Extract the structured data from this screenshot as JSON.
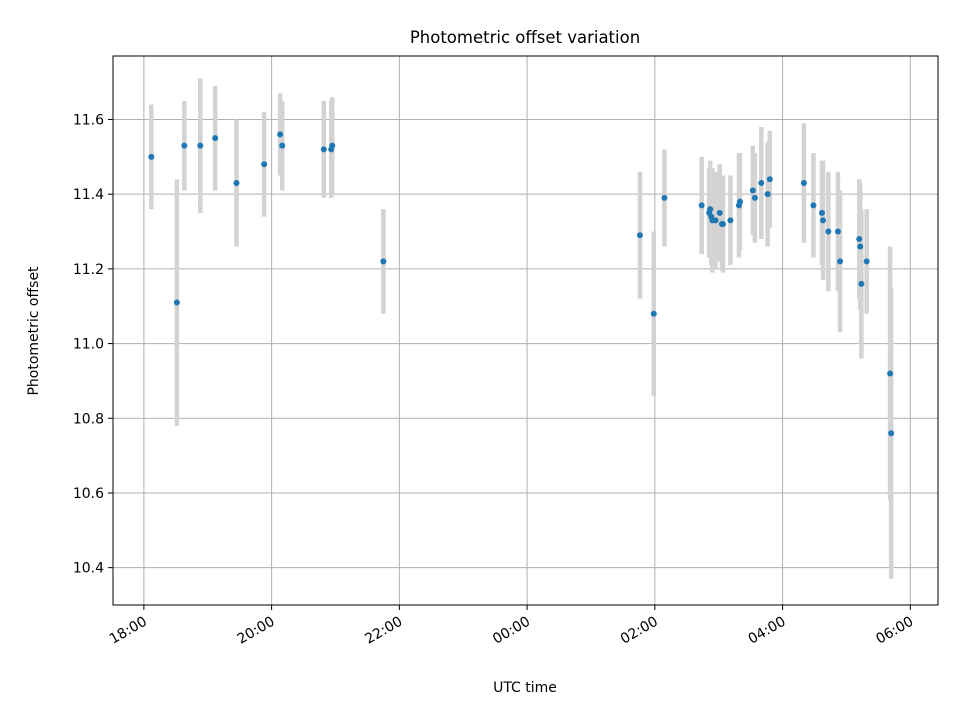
{
  "chart_data": {
    "type": "scatter",
    "title": "Photometric offset variation",
    "xlabel": "UTC time",
    "ylabel": "Photometric offset",
    "x_tick_labels": [
      "18:00",
      "20:00",
      "22:00",
      "00:00",
      "02:00",
      "04:00",
      "06:00"
    ],
    "y_tick_labels": [
      "10.4",
      "10.6",
      "10.8",
      "11.0",
      "11.2",
      "11.4",
      "11.6"
    ],
    "ylim": [
      10.3,
      11.77
    ],
    "xlim": [
      "17:31",
      "06:26"
    ],
    "grid": true,
    "colors": {
      "points": "#1f77b4",
      "errorbars": "#d3d3d3",
      "grid": "#b0b0b0"
    },
    "series": [
      {
        "x": [
          "18:07",
          "18:31",
          "18:38",
          "18:53",
          "19:07",
          "19:27",
          "19:53",
          "20:08",
          "20:10",
          "20:49",
          "20:56",
          "20:57",
          "21:45",
          "01:46",
          "01:59",
          "02:09",
          "02:44",
          "02:51",
          "02:52",
          "02:53",
          "02:54",
          "02:57",
          "03:01",
          "03:03",
          "03:04",
          "03:11",
          "03:19",
          "03:20",
          "03:32",
          "03:34",
          "03:40",
          "03:46",
          "03:48",
          "04:20",
          "04:29",
          "04:37",
          "04:38",
          "04:43",
          "04:52",
          "04:54",
          "05:12",
          "05:13",
          "05:14",
          "05:19",
          "05:41",
          "05:42"
        ],
        "y": [
          11.5,
          11.11,
          11.53,
          11.53,
          11.55,
          11.43,
          11.48,
          11.56,
          11.53,
          11.52,
          11.52,
          11.53,
          11.22,
          11.29,
          11.08,
          11.39,
          11.37,
          11.35,
          11.36,
          11.34,
          11.33,
          11.33,
          11.35,
          11.32,
          11.32,
          11.33,
          11.37,
          11.38,
          11.41,
          11.39,
          11.43,
          11.4,
          11.44,
          11.43,
          11.37,
          11.35,
          11.33,
          11.3,
          11.3,
          11.22,
          11.28,
          11.26,
          11.16,
          11.22,
          10.92,
          10.76
        ],
        "yerr": [
          0.14,
          0.33,
          0.12,
          0.18,
          0.14,
          0.17,
          0.14,
          0.11,
          0.12,
          0.13,
          0.13,
          0.13,
          0.14,
          0.17,
          0.22,
          0.13,
          0.13,
          0.12,
          0.13,
          0.13,
          0.14,
          0.13,
          0.13,
          0.12,
          0.13,
          0.12,
          0.14,
          0.13,
          0.12,
          0.12,
          0.15,
          0.14,
          0.13,
          0.16,
          0.14,
          0.14,
          0.16,
          0.16,
          0.16,
          0.19,
          0.16,
          0.17,
          0.2,
          0.14,
          0.34,
          0.39
        ]
      }
    ]
  }
}
